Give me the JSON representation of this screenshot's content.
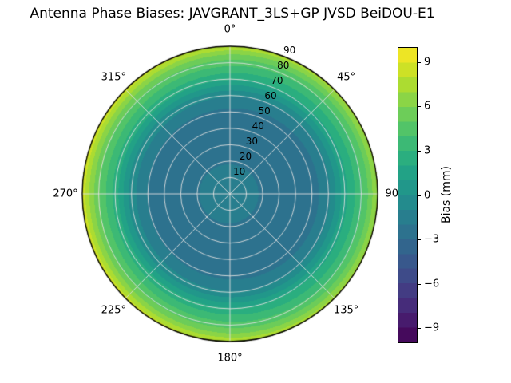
{
  "title": "Antenna Phase Biases: JAVGRANT_3LS+GP JVSD BeiDOU-E1",
  "chart_data": {
    "type": "heatmap",
    "projection": "polar",
    "theta_zero_location": "top",
    "theta_direction": "clockwise",
    "angular_ticks": [
      "0°",
      "45°",
      "90°",
      "135°",
      "180°",
      "225°",
      "270°",
      "315°"
    ],
    "radial_ticks": [
      "10",
      "20",
      "30",
      "40",
      "50",
      "60",
      "70",
      "80",
      "90"
    ],
    "radial_max": 90,
    "radial_label_angle_deg": 22.5,
    "levels_step_mm": 1,
    "radial_profile": {
      "radius": [
        0,
        10,
        20,
        30,
        40,
        50,
        60,
        65,
        70,
        75,
        80,
        85,
        90
      ],
      "bias_mm": [
        -1.2,
        -1.6,
        -2.1,
        -2.4,
        -2.5,
        -2.3,
        -0.9,
        0.6,
        2.2,
        3.3,
        4.5,
        6.0,
        8.0
      ]
    },
    "azimuthal_variation": {
      "amplitude_mm": 0.8,
      "peak_azimuth_deg": 270
    },
    "grid": {
      "visible": true,
      "color": "#e0e0e0",
      "boundary_color": "#000000"
    },
    "colorbar": {
      "label": "Bias (mm)",
      "ticks": [
        9,
        6,
        3,
        0,
        -3,
        -6,
        -9
      ],
      "tick_labels": [
        "9",
        "6",
        "3",
        "0",
        "−3",
        "−6",
        "−9"
      ],
      "vmin": -10,
      "vmax": 10,
      "colormap": "viridis",
      "colormap_stops": [
        "#440154",
        "#482475",
        "#414487",
        "#355f8d",
        "#2a788e",
        "#21918c",
        "#22a884",
        "#44bf70",
        "#7ad151",
        "#bddf26",
        "#fde725"
      ]
    }
  }
}
